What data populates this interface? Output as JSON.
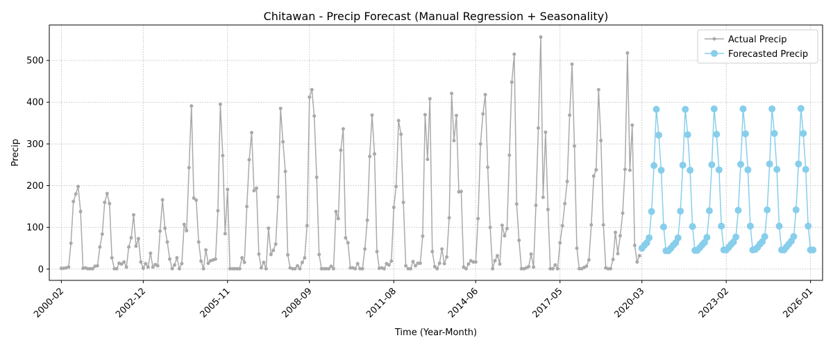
{
  "chart_data": {
    "type": "line",
    "title": "Chitawan - Precip Forecast (Manual Regression + Seasonality)",
    "xlabel": "Time (Year-Month)",
    "ylabel": "Precip",
    "x_range": [
      "1999-09",
      "2026-06"
    ],
    "ylim": [
      -27,
      585
    ],
    "x_ticks": [
      "2000-02",
      "2002-12",
      "2005-11",
      "2008-09",
      "2011-08",
      "2014-06",
      "2017-05",
      "2020-03",
      "2023-02",
      "2026-01"
    ],
    "y_ticks": [
      0,
      100,
      200,
      300,
      400,
      500
    ],
    "grid": true,
    "legend_position": "top-right",
    "series": [
      {
        "name": "Actual Precip",
        "color": "#a9a9a9",
        "marker_size": "small",
        "start": "2000-02",
        "values": [
          2,
          2,
          3,
          5,
          62,
          162,
          180,
          198,
          138,
          2,
          3,
          1,
          1,
          1,
          7,
          8,
          53,
          84,
          160,
          181,
          157,
          27,
          1,
          1,
          14,
          12,
          17,
          5,
          53,
          75,
          130,
          55,
          73,
          17,
          2,
          13,
          5,
          38,
          5,
          11,
          8,
          91,
          166,
          98,
          65,
          24,
          1,
          10,
          27,
          1,
          13,
          107,
          92,
          243,
          391,
          170,
          165,
          65,
          19,
          1,
          46,
          14,
          20,
          22,
          24,
          140,
          395,
          272,
          85,
          191,
          1,
          1,
          1,
          1,
          1,
          27,
          16,
          150,
          262,
          327,
          188,
          194,
          36,
          3,
          16,
          1,
          98,
          35,
          45,
          60,
          173,
          385,
          305,
          234,
          34,
          3,
          1,
          1,
          8,
          1,
          16,
          27,
          104,
          412,
          430,
          367,
          220,
          35,
          1,
          1,
          1,
          1,
          7,
          1,
          138,
          121,
          285,
          336,
          75,
          63,
          3,
          3,
          1,
          13,
          1,
          1,
          48,
          117,
          270,
          369,
          276,
          42,
          2,
          3,
          1,
          13,
          10,
          19,
          148,
          198,
          356,
          323,
          160,
          8,
          1,
          1,
          18,
          8,
          14,
          14,
          79,
          370,
          263,
          408,
          42,
          6,
          1,
          14,
          48,
          13,
          29,
          123,
          421,
          308,
          368,
          185,
          186,
          5,
          1,
          12,
          20,
          17,
          17,
          121,
          300,
          372,
          418,
          244,
          100,
          1,
          20,
          32,
          12,
          105,
          80,
          97,
          273,
          448,
          515,
          156,
          69,
          1,
          1,
          3,
          6,
          36,
          5,
          153,
          338,
          556,
          172,
          328,
          143,
          1,
          1,
          10,
          1,
          63,
          104,
          157,
          210,
          369,
          491,
          295,
          50,
          1,
          1,
          4,
          7,
          22,
          106,
          223,
          238,
          430,
          308,
          106,
          3,
          1,
          1,
          23,
          88,
          37,
          80,
          134,
          239,
          518,
          237,
          345,
          57,
          17,
          32
        ]
      },
      {
        "name": "Forecasted Precip",
        "color": "#87ceeb",
        "marker_size": "large",
        "start": "2020-03",
        "values": [
          50,
          57,
          63,
          75,
          138,
          248,
          383,
          321,
          237,
          101,
          44,
          44,
          50,
          57,
          63,
          75,
          139,
          249,
          383,
          322,
          237,
          102,
          45,
          45,
          51,
          58,
          64,
          76,
          140,
          250,
          384,
          323,
          238,
          103,
          46,
          46,
          52,
          59,
          65,
          77,
          141,
          251,
          384,
          324,
          238,
          103,
          46,
          47,
          52,
          60,
          66,
          78,
          142,
          252,
          384,
          325,
          239,
          103,
          46,
          46,
          53,
          60,
          67,
          78,
          142,
          252,
          385,
          325,
          239,
          103,
          46,
          46
        ]
      }
    ]
  }
}
